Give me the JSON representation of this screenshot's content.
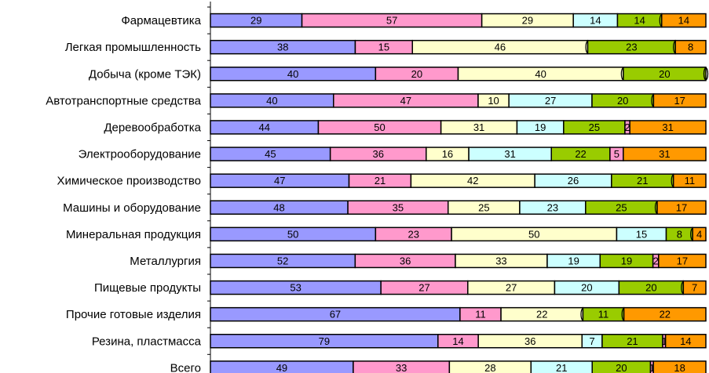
{
  "chart_data": {
    "type": "bar",
    "orientation": "horizontal",
    "stacked": true,
    "title": "",
    "xlabel": "",
    "ylabel": "",
    "legend": "none",
    "grid": false,
    "categories": [
      "Фармацевтика",
      "Легкая промышленность",
      "Добыча (кроме ТЭК)",
      "Автотранспортные средства",
      "Деревообработка",
      "Электрооборудование",
      "Химическое производство",
      "Машины и оборудование",
      "Минеральная продукция",
      "Металлургия",
      "Пищевые продукты",
      "Прочие готовые изделия",
      "Резина, пластмасса",
      "Всего"
    ],
    "series": [
      {
        "color": "#9999ff",
        "values": [
          29,
          38,
          40,
          40,
          44,
          45,
          47,
          48,
          50,
          52,
          53,
          67,
          79,
          49
        ]
      },
      {
        "color": "#ff99cc",
        "values": [
          57,
          15,
          20,
          47,
          50,
          36,
          21,
          35,
          23,
          36,
          27,
          11,
          14,
          33
        ]
      },
      {
        "color": "#ffffcc",
        "values": [
          29,
          46,
          40,
          10,
          31,
          16,
          42,
          25,
          50,
          33,
          27,
          22,
          36,
          28
        ]
      },
      {
        "color": "#ccffff",
        "values": [
          14,
          0,
          0,
          27,
          19,
          31,
          26,
          23,
          15,
          19,
          20,
          0,
          7,
          21
        ]
      },
      {
        "color": "#99cc00",
        "values": [
          14,
          23,
          20,
          20,
          25,
          22,
          21,
          25,
          8,
          19,
          20,
          11,
          21,
          20
        ]
      },
      {
        "color": "#ff99cc",
        "values": [
          0,
          0,
          0,
          0,
          2,
          5,
          0,
          0,
          0,
          2,
          0,
          0,
          1,
          1
        ]
      },
      {
        "color": "#ff9900",
        "values": [
          14,
          8,
          0,
          17,
          31,
          31,
          11,
          17,
          4,
          17,
          7,
          22,
          14,
          18
        ]
      }
    ]
  }
}
